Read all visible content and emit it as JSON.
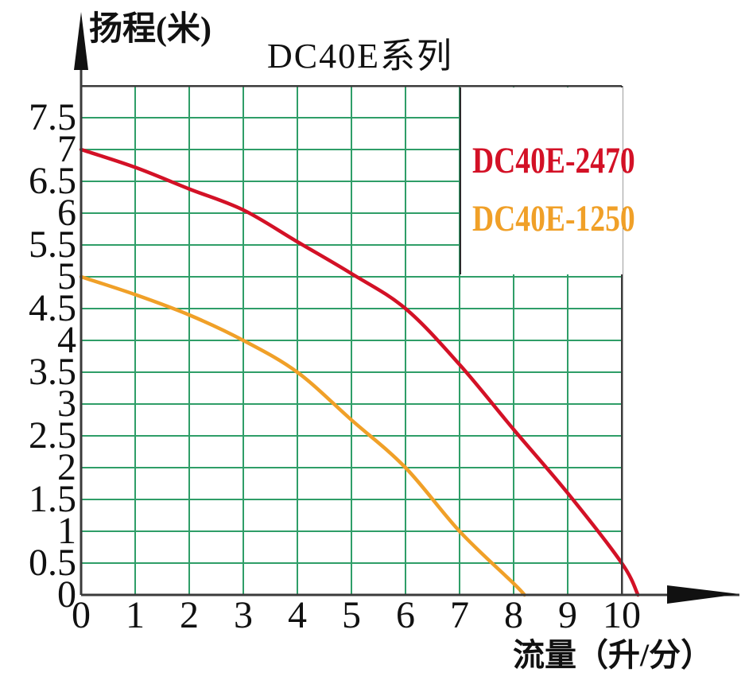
{
  "chart_data": {
    "type": "line",
    "title": "DC40E系列",
    "xlabel": "流量（升/分）",
    "ylabel": "扬程(米)",
    "x_ticks": [
      0,
      1,
      2,
      3,
      4,
      5,
      6,
      7,
      8,
      9,
      10
    ],
    "y_ticks": [
      0,
      0.5,
      1,
      1.5,
      2,
      2.5,
      3,
      3.5,
      4,
      4.5,
      5,
      5.5,
      6,
      6.5,
      7,
      7.5
    ],
    "xlim": [
      0,
      10
    ],
    "ylim": [
      0,
      8
    ],
    "grid": true,
    "legend_position": "top-right",
    "colors": {
      "grid": "#2f9e68",
      "axis": "#3b3b3b",
      "text": "#111111",
      "background": "#ffffff"
    },
    "series": [
      {
        "name": "DC40E-2470",
        "color": "#d31126",
        "points": [
          [
            0,
            7.0
          ],
          [
            1,
            6.72
          ],
          [
            2,
            6.38
          ],
          [
            3,
            6.05
          ],
          [
            4,
            5.55
          ],
          [
            5,
            5.05
          ],
          [
            6,
            4.5
          ],
          [
            7,
            3.62
          ],
          [
            8,
            2.6
          ],
          [
            9,
            1.6
          ],
          [
            10,
            0.5
          ],
          [
            10.3,
            0
          ]
        ]
      },
      {
        "name": "DC40E-1250",
        "color": "#f0a028",
        "points": [
          [
            0,
            5.0
          ],
          [
            1,
            4.72
          ],
          [
            2,
            4.4
          ],
          [
            3,
            4.0
          ],
          [
            4,
            3.5
          ],
          [
            5,
            2.75
          ],
          [
            6,
            2.0
          ],
          [
            7,
            1.0
          ],
          [
            8,
            0.18
          ],
          [
            8.2,
            0
          ]
        ]
      }
    ]
  }
}
